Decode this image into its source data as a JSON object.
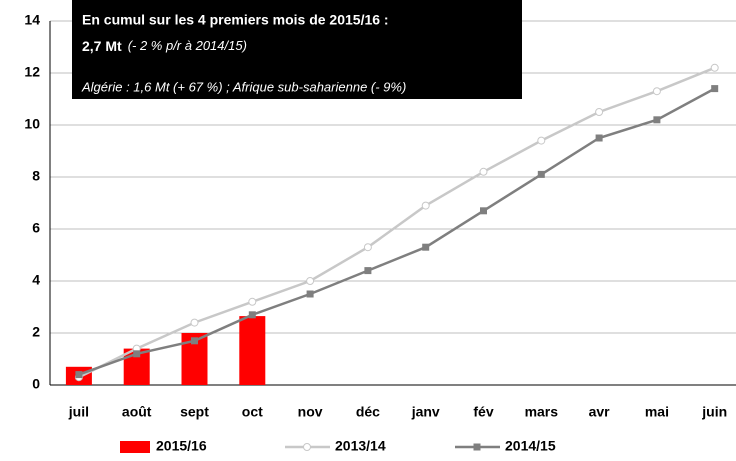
{
  "chart_data": {
    "type": "bar_line",
    "categories": [
      "juil",
      "août",
      "sept",
      "oct",
      "nov",
      "déc",
      "janv",
      "fév",
      "mars",
      "avr",
      "mai",
      "juin"
    ],
    "series": [
      {
        "name": "2015/16",
        "type": "bar",
        "color": "#ff0000",
        "values": [
          0.7,
          1.4,
          2.0,
          2.65,
          null,
          null,
          null,
          null,
          null,
          null,
          null,
          null
        ]
      },
      {
        "name": "2013/14",
        "type": "line",
        "marker": "circle",
        "color": "#c8c8c8",
        "values": [
          0.3,
          1.4,
          2.4,
          3.2,
          4.0,
          5.3,
          6.9,
          8.2,
          9.4,
          10.5,
          11.3,
          12.2
        ]
      },
      {
        "name": "2014/15",
        "type": "line",
        "marker": "square",
        "color": "#7f7f7f",
        "values": [
          0.4,
          1.2,
          1.7,
          2.7,
          3.5,
          4.4,
          5.3,
          6.7,
          8.1,
          9.5,
          10.2,
          11.4
        ]
      }
    ],
    "ylim": [
      0,
      14
    ],
    "yticks": [
      0,
      2,
      4,
      6,
      8,
      10,
      12,
      14
    ],
    "grid": true,
    "annotation": {
      "line1": "En cumul sur les 4 premiers mois de 2015/16 :",
      "line2_bold": "2,7 Mt",
      "line2_italic": "(- 2 % p/r à 2014/15)",
      "line3": "Algérie : 1,6 Mt (+ 67 %) ; Afrique sub-saharienne (- 9%)"
    }
  }
}
